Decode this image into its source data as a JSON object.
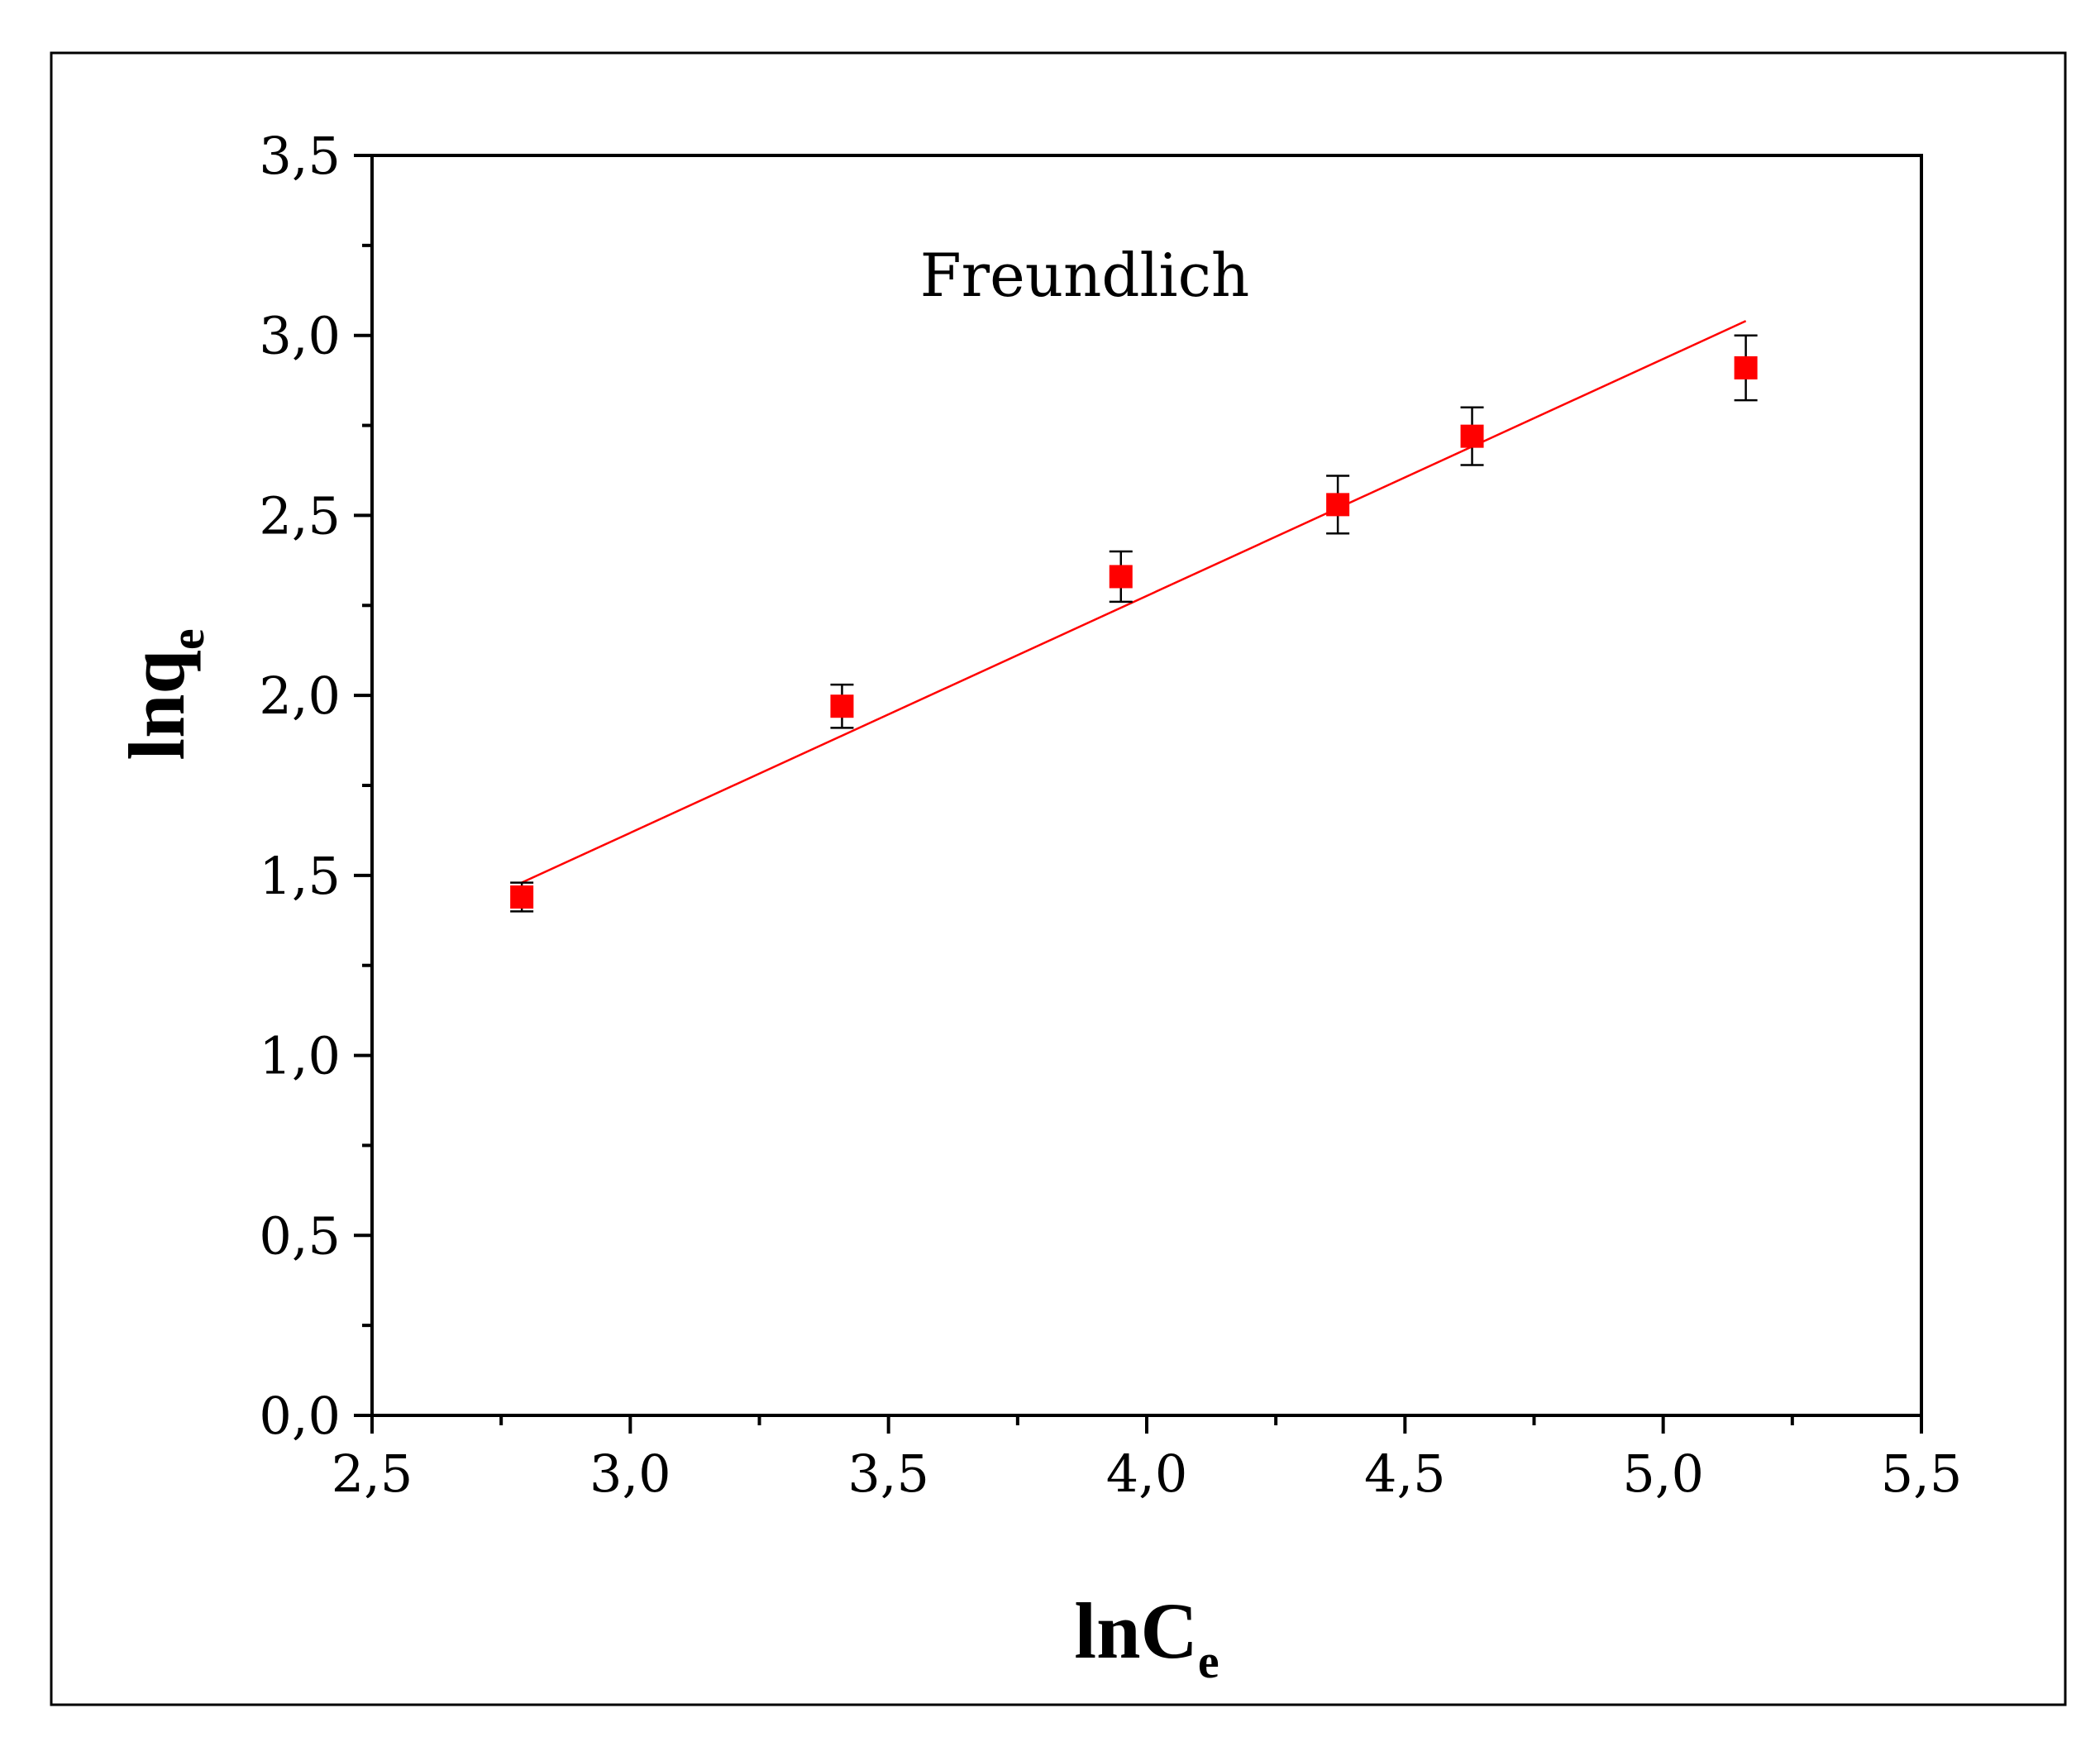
{
  "chart_data": {
    "type": "scatter",
    "annotation": "Freundlich",
    "xlabel": {
      "main": "lnC",
      "sub": "e"
    },
    "ylabel": {
      "main": "lnq",
      "sub": "e"
    },
    "xlim": [
      2.5,
      5.5
    ],
    "ylim": [
      0.0,
      3.5
    ],
    "xticks": [
      2.5,
      3.0,
      3.5,
      4.0,
      4.5,
      5.0,
      5.5
    ],
    "yticks": [
      0.0,
      0.5,
      1.0,
      1.5,
      2.0,
      2.5,
      3.0,
      3.5
    ],
    "xtick_labels": [
      "2,5",
      "3,0",
      "3,5",
      "4,0",
      "4,5",
      "5,0",
      "5,5"
    ],
    "ytick_labels": [
      "0,0",
      "0,5",
      "1,0",
      "1,5",
      "2,0",
      "2,5",
      "3,0",
      "3,5"
    ],
    "grid": false,
    "marker_color": "#ff0000",
    "line_color": "#ff0000",
    "points": [
      {
        "x": 2.79,
        "y": 1.44,
        "err": 0.04
      },
      {
        "x": 3.41,
        "y": 1.97,
        "err": 0.06
      },
      {
        "x": 3.95,
        "y": 2.33,
        "err": 0.07
      },
      {
        "x": 4.37,
        "y": 2.53,
        "err": 0.08
      },
      {
        "x": 4.63,
        "y": 2.72,
        "err": 0.08
      },
      {
        "x": 5.16,
        "y": 2.91,
        "err": 0.09
      }
    ],
    "fit_line": {
      "x": [
        2.79,
        5.16
      ],
      "y": [
        1.48,
        3.04
      ]
    }
  }
}
